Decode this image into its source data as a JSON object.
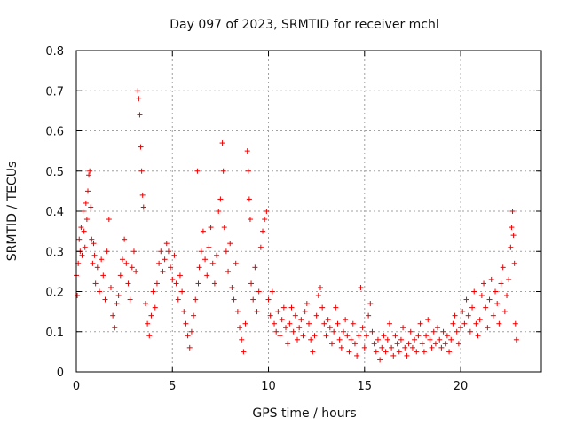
{
  "chart_data": {
    "type": "scatter",
    "title": "Day 097 of 2023, SRMTID for receiver mchl",
    "xlabel": "GPS time / hours",
    "ylabel": "SRMTID / TECUs",
    "xlim": [
      0,
      24.2
    ],
    "ylim": [
      0,
      0.8
    ],
    "grid": true,
    "marker": "+",
    "color": "#ee0000",
    "x_ticks": [
      0,
      5,
      10,
      15,
      20
    ],
    "x_tick_labels": [
      "0",
      "5",
      "10",
      "15",
      "20"
    ],
    "y_ticks": [
      0,
      0.1,
      0.2,
      0.3,
      0.4,
      0.5,
      0.6,
      0.7,
      0.8
    ],
    "y_tick_labels": [
      "0",
      "0.1",
      "0.2",
      "0.3",
      "0.4",
      "0.5",
      "0.6",
      "0.7",
      "0.8"
    ],
    "series": [
      {
        "name": "SRMTID",
        "points": [
          [
            0.0,
            0.24
          ],
          [
            0.05,
            0.19
          ],
          [
            0.1,
            0.27
          ],
          [
            0.15,
            0.33
          ],
          [
            0.2,
            0.3
          ],
          [
            0.25,
            0.36
          ],
          [
            0.3,
            0.29
          ],
          [
            0.35,
            0.4
          ],
          [
            0.4,
            0.35
          ],
          [
            0.45,
            0.31
          ],
          [
            0.5,
            0.42
          ],
          [
            0.55,
            0.38
          ],
          [
            0.6,
            0.45
          ],
          [
            0.65,
            0.49
          ],
          [
            0.7,
            0.5
          ],
          [
            0.75,
            0.41
          ],
          [
            0.8,
            0.33
          ],
          [
            0.85,
            0.27
          ],
          [
            0.9,
            0.32
          ],
          [
            0.95,
            0.29
          ],
          [
            1.0,
            0.22
          ],
          [
            1.1,
            0.26
          ],
          [
            1.2,
            0.2
          ],
          [
            1.3,
            0.28
          ],
          [
            1.4,
            0.24
          ],
          [
            1.5,
            0.18
          ],
          [
            1.6,
            0.3
          ],
          [
            1.7,
            0.38
          ],
          [
            1.8,
            0.21
          ],
          [
            1.9,
            0.14
          ],
          [
            2.0,
            0.11
          ],
          [
            2.1,
            0.17
          ],
          [
            2.2,
            0.19
          ],
          [
            2.3,
            0.24
          ],
          [
            2.4,
            0.28
          ],
          [
            2.5,
            0.33
          ],
          [
            2.6,
            0.27
          ],
          [
            2.7,
            0.22
          ],
          [
            2.8,
            0.18
          ],
          [
            2.9,
            0.26
          ],
          [
            3.0,
            0.3
          ],
          [
            3.1,
            0.25
          ],
          [
            3.2,
            0.7
          ],
          [
            3.25,
            0.68
          ],
          [
            3.3,
            0.64
          ],
          [
            3.35,
            0.56
          ],
          [
            3.4,
            0.5
          ],
          [
            3.45,
            0.44
          ],
          [
            3.5,
            0.41
          ],
          [
            3.6,
            0.17
          ],
          [
            3.7,
            0.12
          ],
          [
            3.8,
            0.09
          ],
          [
            3.9,
            0.14
          ],
          [
            4.0,
            0.2
          ],
          [
            4.1,
            0.16
          ],
          [
            4.2,
            0.22
          ],
          [
            4.3,
            0.27
          ],
          [
            4.4,
            0.3
          ],
          [
            4.5,
            0.25
          ],
          [
            4.6,
            0.28
          ],
          [
            4.7,
            0.32
          ],
          [
            4.8,
            0.3
          ],
          [
            4.9,
            0.26
          ],
          [
            5.0,
            0.23
          ],
          [
            5.1,
            0.29
          ],
          [
            5.2,
            0.22
          ],
          [
            5.3,
            0.18
          ],
          [
            5.4,
            0.24
          ],
          [
            5.5,
            0.2
          ],
          [
            5.6,
            0.15
          ],
          [
            5.7,
            0.12
          ],
          [
            5.8,
            0.09
          ],
          [
            5.9,
            0.06
          ],
          [
            6.0,
            0.1
          ],
          [
            6.1,
            0.14
          ],
          [
            6.2,
            0.18
          ],
          [
            6.3,
            0.5
          ],
          [
            6.35,
            0.22
          ],
          [
            6.4,
            0.26
          ],
          [
            6.5,
            0.3
          ],
          [
            6.6,
            0.35
          ],
          [
            6.7,
            0.28
          ],
          [
            6.8,
            0.24
          ],
          [
            6.9,
            0.31
          ],
          [
            7.0,
            0.36
          ],
          [
            7.1,
            0.27
          ],
          [
            7.2,
            0.22
          ],
          [
            7.3,
            0.29
          ],
          [
            7.4,
            0.4
          ],
          [
            7.5,
            0.43
          ],
          [
            7.6,
            0.57
          ],
          [
            7.65,
            0.5
          ],
          [
            7.7,
            0.36
          ],
          [
            7.8,
            0.3
          ],
          [
            7.9,
            0.25
          ],
          [
            8.0,
            0.32
          ],
          [
            8.1,
            0.21
          ],
          [
            8.2,
            0.18
          ],
          [
            8.3,
            0.27
          ],
          [
            8.4,
            0.15
          ],
          [
            8.5,
            0.11
          ],
          [
            8.6,
            0.08
          ],
          [
            8.7,
            0.05
          ],
          [
            8.8,
            0.12
          ],
          [
            8.9,
            0.55
          ],
          [
            8.95,
            0.5
          ],
          [
            9.0,
            0.43
          ],
          [
            9.05,
            0.38
          ],
          [
            9.1,
            0.22
          ],
          [
            9.2,
            0.18
          ],
          [
            9.3,
            0.26
          ],
          [
            9.4,
            0.15
          ],
          [
            9.5,
            0.2
          ],
          [
            9.6,
            0.31
          ],
          [
            9.7,
            0.35
          ],
          [
            9.8,
            0.38
          ],
          [
            9.9,
            0.4
          ],
          [
            10.0,
            0.18
          ],
          [
            10.1,
            0.14
          ],
          [
            10.2,
            0.2
          ],
          [
            10.3,
            0.12
          ],
          [
            10.4,
            0.1
          ],
          [
            10.5,
            0.15
          ],
          [
            10.6,
            0.09
          ],
          [
            10.7,
            0.13
          ],
          [
            10.8,
            0.16
          ],
          [
            10.9,
            0.11
          ],
          [
            11.0,
            0.07
          ],
          [
            11.1,
            0.12
          ],
          [
            11.2,
            0.16
          ],
          [
            11.3,
            0.1
          ],
          [
            11.4,
            0.14
          ],
          [
            11.5,
            0.08
          ],
          [
            11.6,
            0.11
          ],
          [
            11.7,
            0.13
          ],
          [
            11.8,
            0.09
          ],
          [
            11.9,
            0.15
          ],
          [
            12.0,
            0.17
          ],
          [
            12.1,
            0.12
          ],
          [
            12.2,
            0.08
          ],
          [
            12.3,
            0.05
          ],
          [
            12.4,
            0.09
          ],
          [
            12.5,
            0.14
          ],
          [
            12.6,
            0.19
          ],
          [
            12.7,
            0.21
          ],
          [
            12.8,
            0.16
          ],
          [
            12.9,
            0.12
          ],
          [
            13.0,
            0.09
          ],
          [
            13.1,
            0.13
          ],
          [
            13.2,
            0.11
          ],
          [
            13.3,
            0.07
          ],
          [
            13.4,
            0.1
          ],
          [
            13.5,
            0.16
          ],
          [
            13.6,
            0.12
          ],
          [
            13.7,
            0.08
          ],
          [
            13.8,
            0.06
          ],
          [
            13.9,
            0.1
          ],
          [
            14.0,
            0.13
          ],
          [
            14.1,
            0.09
          ],
          [
            14.2,
            0.05
          ],
          [
            14.3,
            0.08
          ],
          [
            14.4,
            0.12
          ],
          [
            14.5,
            0.07
          ],
          [
            14.6,
            0.04
          ],
          [
            14.7,
            0.09
          ],
          [
            14.8,
            0.21
          ],
          [
            14.9,
            0.11
          ],
          [
            15.0,
            0.06
          ],
          [
            15.1,
            0.09
          ],
          [
            15.2,
            0.14
          ],
          [
            15.3,
            0.17
          ],
          [
            15.4,
            0.1
          ],
          [
            15.5,
            0.07
          ],
          [
            15.6,
            0.05
          ],
          [
            15.7,
            0.08
          ],
          [
            15.8,
            0.03
          ],
          [
            15.9,
            0.06
          ],
          [
            16.0,
            0.09
          ],
          [
            16.1,
            0.05
          ],
          [
            16.2,
            0.08
          ],
          [
            16.3,
            0.12
          ],
          [
            16.4,
            0.06
          ],
          [
            16.5,
            0.04
          ],
          [
            16.6,
            0.09
          ],
          [
            16.7,
            0.07
          ],
          [
            16.8,
            0.05
          ],
          [
            16.9,
            0.08
          ],
          [
            17.0,
            0.11
          ],
          [
            17.1,
            0.06
          ],
          [
            17.2,
            0.04
          ],
          [
            17.3,
            0.07
          ],
          [
            17.4,
            0.1
          ],
          [
            17.5,
            0.06
          ],
          [
            17.6,
            0.08
          ],
          [
            17.7,
            0.05
          ],
          [
            17.8,
            0.09
          ],
          [
            17.9,
            0.12
          ],
          [
            18.0,
            0.07
          ],
          [
            18.1,
            0.05
          ],
          [
            18.2,
            0.09
          ],
          [
            18.3,
            0.13
          ],
          [
            18.4,
            0.08
          ],
          [
            18.5,
            0.06
          ],
          [
            18.6,
            0.1
          ],
          [
            18.7,
            0.07
          ],
          [
            18.8,
            0.11
          ],
          [
            18.9,
            0.08
          ],
          [
            19.0,
            0.06
          ],
          [
            19.1,
            0.1
          ],
          [
            19.2,
            0.07
          ],
          [
            19.3,
            0.09
          ],
          [
            19.4,
            0.05
          ],
          [
            19.5,
            0.08
          ],
          [
            19.6,
            0.12
          ],
          [
            19.7,
            0.14
          ],
          [
            19.8,
            0.1
          ],
          [
            19.9,
            0.07
          ],
          [
            20.0,
            0.11
          ],
          [
            20.1,
            0.15
          ],
          [
            20.2,
            0.12
          ],
          [
            20.3,
            0.18
          ],
          [
            20.4,
            0.14
          ],
          [
            20.5,
            0.1
          ],
          [
            20.6,
            0.16
          ],
          [
            20.7,
            0.2
          ],
          [
            20.8,
            0.12
          ],
          [
            20.9,
            0.09
          ],
          [
            21.0,
            0.13
          ],
          [
            21.1,
            0.19
          ],
          [
            21.2,
            0.22
          ],
          [
            21.3,
            0.16
          ],
          [
            21.4,
            0.11
          ],
          [
            21.5,
            0.18
          ],
          [
            21.6,
            0.23
          ],
          [
            21.7,
            0.14
          ],
          [
            21.8,
            0.2
          ],
          [
            21.9,
            0.17
          ],
          [
            22.0,
            0.12
          ],
          [
            22.1,
            0.22
          ],
          [
            22.2,
            0.26
          ],
          [
            22.3,
            0.15
          ],
          [
            22.4,
            0.19
          ],
          [
            22.5,
            0.23
          ],
          [
            22.6,
            0.31
          ],
          [
            22.65,
            0.36
          ],
          [
            22.7,
            0.4
          ],
          [
            22.75,
            0.34
          ],
          [
            22.8,
            0.27
          ],
          [
            22.85,
            0.12
          ],
          [
            22.9,
            0.08
          ]
        ]
      }
    ]
  }
}
